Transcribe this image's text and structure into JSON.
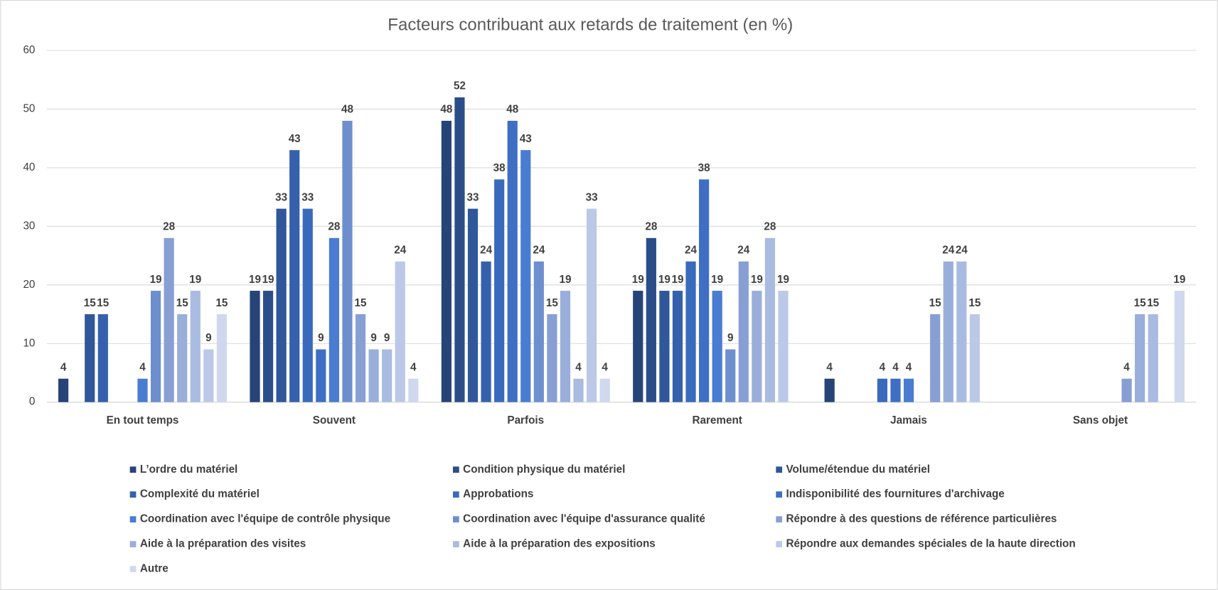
{
  "chart_data": {
    "type": "bar",
    "title": "Facteurs contribuant aux retards de traitement (en %)",
    "categories": [
      "En tout temps",
      "Souvent",
      "Parfois",
      "Rarement",
      "Jamais",
      "Sans objet"
    ],
    "ylim": [
      0,
      60
    ],
    "yticks": [
      0,
      10,
      20,
      30,
      40,
      50,
      60
    ],
    "grid": true,
    "legend": "bottom",
    "series": [
      {
        "name": "L’ordre du matériel",
        "color": "#264478",
        "values": [
          4,
          19,
          48,
          19,
          4,
          0
        ]
      },
      {
        "name": "Condition physique du matériel",
        "color": "#2b4e89",
        "values": [
          0,
          19,
          52,
          28,
          0,
          0
        ]
      },
      {
        "name": "Volume/étendue du matériel",
        "color": "#30579a",
        "values": [
          15,
          33,
          33,
          19,
          0,
          0
        ]
      },
      {
        "name": "Complexité du matériel",
        "color": "#3561ac",
        "values": [
          15,
          43,
          24,
          19,
          0,
          0
        ]
      },
      {
        "name": "Approbations",
        "color": "#3a6abc",
        "values": [
          0,
          33,
          38,
          24,
          4,
          0
        ]
      },
      {
        "name": "Indisponibilité des fournitures d'archivage",
        "color": "#3f6fc4",
        "values": [
          0,
          9,
          48,
          38,
          4,
          0
        ]
      },
      {
        "name": "Coordination avec l'équipe de contrôle physique",
        "color": "#4a7cd2",
        "values": [
          4,
          28,
          43,
          19,
          4,
          0
        ]
      },
      {
        "name": "Coordination avec l'équipe d'assurance qualité",
        "color": "#6e8fce",
        "values": [
          19,
          48,
          24,
          9,
          0,
          0
        ]
      },
      {
        "name": "Répondre à des questions de référence particulières",
        "color": "#889fd4",
        "values": [
          28,
          15,
          15,
          24,
          15,
          4
        ]
      },
      {
        "name": "Aide à la préparation des visites",
        "color": "#9aaedb",
        "values": [
          15,
          9,
          19,
          19,
          24,
          15
        ]
      },
      {
        "name": "Aide à la préparation des expositions",
        "color": "#aabbe1",
        "values": [
          19,
          9,
          4,
          28,
          24,
          15
        ]
      },
      {
        "name": "Répondre aux demandes spéciales de la haute direction",
        "color": "#bcc8e7",
        "values": [
          9,
          24,
          33,
          19,
          15,
          0
        ]
      },
      {
        "name": "Autre",
        "color": "#d0d8ef",
        "values": [
          15,
          4,
          4,
          0,
          0,
          19
        ]
      }
    ]
  }
}
